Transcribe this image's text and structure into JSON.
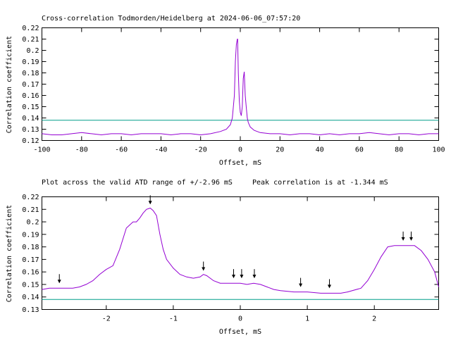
{
  "chart_data": [
    {
      "type": "line",
      "title": "Cross-correlation Todmorden/Heidelberg at 2024-06-06_07:57:20",
      "xlabel": "Offset, mS",
      "ylabel": "Correlation coefficient",
      "xlim": [
        -100,
        100
      ],
      "ylim": [
        0.12,
        0.22
      ],
      "xticks": [
        -100,
        -80,
        -60,
        -40,
        -20,
        0,
        20,
        40,
        60,
        80,
        100
      ],
      "yticks": [
        0.12,
        0.13,
        0.14,
        0.15,
        0.16,
        0.17,
        0.18,
        0.19,
        0.2,
        0.21,
        0.22
      ],
      "threshold": 0.138,
      "grid": false,
      "colors": {
        "series": "#9400d3",
        "threshold": "#009e8a"
      },
      "series": [
        {
          "x": [
            -100,
            -95,
            -90,
            -85,
            -80,
            -75,
            -70,
            -65,
            -60,
            -55,
            -50,
            -45,
            -40,
            -35,
            -30,
            -25,
            -20,
            -15,
            -10,
            -7,
            -5,
            -4,
            -3,
            -2.5,
            -2,
            -1.5,
            -1.344,
            -1,
            -0.5,
            0,
            0.5,
            1,
            1.5,
            2,
            2.5,
            3,
            3.5,
            4,
            5,
            7,
            10,
            15,
            20,
            25,
            30,
            35,
            40,
            45,
            50,
            55,
            60,
            65,
            70,
            75,
            80,
            85,
            90,
            95,
            100
          ],
          "values": [
            0.126,
            0.125,
            0.125,
            0.126,
            0.127,
            0.126,
            0.125,
            0.126,
            0.126,
            0.125,
            0.126,
            0.126,
            0.126,
            0.125,
            0.126,
            0.126,
            0.125,
            0.126,
            0.128,
            0.13,
            0.134,
            0.14,
            0.16,
            0.19,
            0.205,
            0.21,
            0.21,
            0.18,
            0.155,
            0.145,
            0.142,
            0.15,
            0.175,
            0.181,
            0.16,
            0.15,
            0.14,
            0.136,
            0.132,
            0.129,
            0.127,
            0.126,
            0.126,
            0.125,
            0.126,
            0.126,
            0.125,
            0.126,
            0.125,
            0.126,
            0.126,
            0.127,
            0.126,
            0.125,
            0.126,
            0.126,
            0.125,
            0.126,
            0.126
          ]
        }
      ]
    },
    {
      "type": "line",
      "title": "Plot across the valid ATD range of +/-2.96 mS",
      "subtitle": "Peak correlation is at -1.344 mS",
      "xlabel": "Offset, mS",
      "ylabel": "Correlation coefficient",
      "xlim": [
        -2.96,
        2.96
      ],
      "ylim": [
        0.13,
        0.22
      ],
      "xticks": [
        -2,
        -1,
        0,
        1,
        2
      ],
      "yticks": [
        0.13,
        0.14,
        0.15,
        0.16,
        0.17,
        0.18,
        0.19,
        0.2,
        0.21,
        0.22
      ],
      "threshold": 0.138,
      "grid": false,
      "colors": {
        "series": "#9400d3",
        "threshold": "#009e8a",
        "markers": "#000000"
      },
      "markers": [
        {
          "x": -2.7,
          "y": 0.147
        },
        {
          "x": -1.344,
          "y": 0.21
        },
        {
          "x": -0.55,
          "y": 0.157
        },
        {
          "x": -0.1,
          "y": 0.151
        },
        {
          "x": 0.02,
          "y": 0.151
        },
        {
          "x": 0.21,
          "y": 0.151
        },
        {
          "x": 0.9,
          "y": 0.144
        },
        {
          "x": 1.33,
          "y": 0.143
        },
        {
          "x": 2.43,
          "y": 0.181
        },
        {
          "x": 2.55,
          "y": 0.181
        }
      ],
      "series": [
        {
          "x": [
            -2.96,
            -2.85,
            -2.7,
            -2.5,
            -2.4,
            -2.3,
            -2.2,
            -2.1,
            -2.0,
            -1.9,
            -1.8,
            -1.7,
            -1.6,
            -1.55,
            -1.5,
            -1.45,
            -1.4,
            -1.344,
            -1.3,
            -1.25,
            -1.2,
            -1.15,
            -1.1,
            -1.0,
            -0.9,
            -0.8,
            -0.7,
            -0.6,
            -0.55,
            -0.5,
            -0.4,
            -0.3,
            -0.2,
            -0.1,
            0.0,
            0.1,
            0.2,
            0.3,
            0.4,
            0.5,
            0.6,
            0.8,
            0.9,
            1.0,
            1.2,
            1.33,
            1.5,
            1.6,
            1.8,
            1.9,
            2.0,
            2.1,
            2.2,
            2.3,
            2.4,
            2.5,
            2.6,
            2.7,
            2.8,
            2.9,
            2.96
          ],
          "values": [
            0.146,
            0.147,
            0.147,
            0.147,
            0.148,
            0.15,
            0.153,
            0.158,
            0.162,
            0.165,
            0.178,
            0.195,
            0.2,
            0.2,
            0.203,
            0.207,
            0.21,
            0.211,
            0.209,
            0.205,
            0.19,
            0.178,
            0.17,
            0.163,
            0.158,
            0.156,
            0.155,
            0.156,
            0.158,
            0.157,
            0.153,
            0.151,
            0.151,
            0.151,
            0.151,
            0.15,
            0.151,
            0.15,
            0.148,
            0.146,
            0.145,
            0.144,
            0.144,
            0.144,
            0.143,
            0.143,
            0.143,
            0.144,
            0.147,
            0.153,
            0.162,
            0.172,
            0.18,
            0.181,
            0.181,
            0.181,
            0.181,
            0.177,
            0.17,
            0.16,
            0.148
          ]
        }
      ]
    }
  ]
}
